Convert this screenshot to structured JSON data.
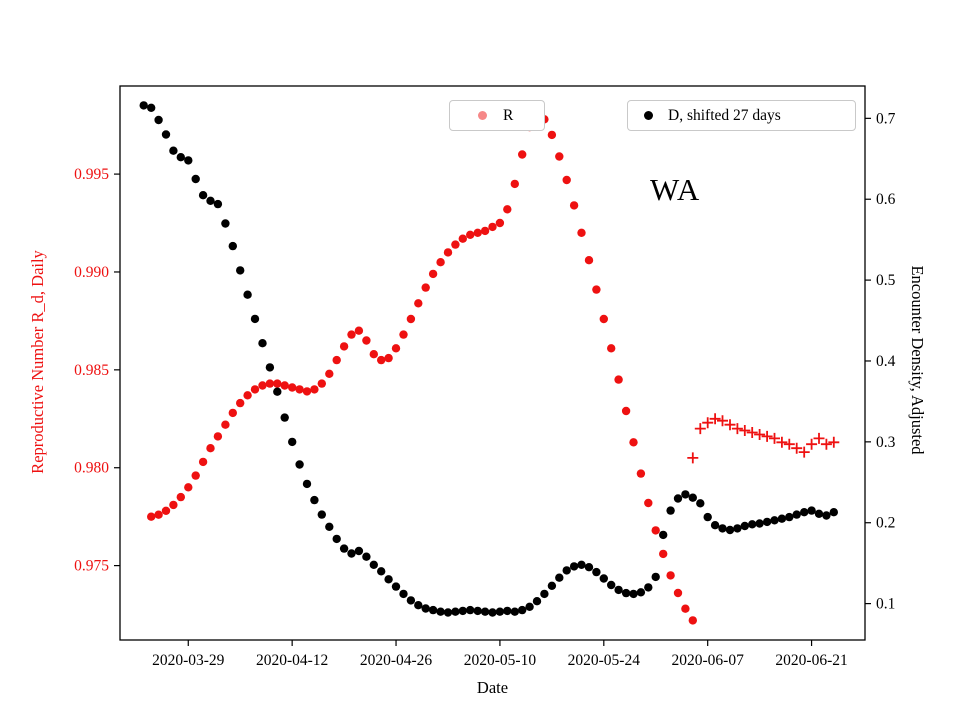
{
  "chart_data": {
    "type": "scatter",
    "title": "",
    "annotation": "WA",
    "xlabel": "Date",
    "x_unit": "days since 2020-03-23",
    "xlim_days": [
      -3.2,
      97.2
    ],
    "x_ticks": {
      "days": [
        6,
        20,
        34,
        48,
        62,
        76,
        90
      ],
      "labels": [
        "2020-03-29",
        "2020-04-12",
        "2020-04-26",
        "2020-05-10",
        "2020-05-24",
        "2020-06-07",
        "2020-06-21"
      ]
    },
    "left_axis": {
      "label": "Reproductive Number R_d, Daily",
      "color": "#ee1111",
      "lim": [
        0.9712,
        0.9995
      ],
      "ticks": [
        0.975,
        0.98,
        0.985,
        0.99,
        0.995
      ],
      "tick_labels": [
        "0.975",
        "0.980",
        "0.985",
        "0.990",
        "0.995"
      ]
    },
    "right_axis": {
      "label": "Encounter Density, Adjusted",
      "color": "#000000",
      "lim": [
        0.055,
        0.74
      ],
      "ticks": [
        0.1,
        0.2,
        0.3,
        0.4,
        0.5,
        0.6,
        0.7
      ],
      "tick_labels": [
        "0.1",
        "0.2",
        "0.3",
        "0.4",
        "0.5",
        "0.6",
        "0.7"
      ]
    },
    "legend": [
      {
        "label": "R",
        "marker": "circle",
        "color": "#ee1111",
        "marker_opacity": 0.5
      },
      {
        "label": "D, shifted 27 days",
        "marker": "circle",
        "color": "#000000",
        "marker_opacity": 1
      }
    ],
    "grid": false,
    "series": [
      {
        "name": "R",
        "axis": "left",
        "marker": "circle",
        "color": "#ee1111",
        "start_day": 1,
        "values": [
          0.9775,
          0.9776,
          0.9778,
          0.9781,
          0.9785,
          0.979,
          0.9796,
          0.9803,
          0.981,
          0.9816,
          0.9822,
          0.9828,
          0.9833,
          0.9837,
          0.984,
          0.9842,
          0.9843,
          0.9843,
          0.9842,
          0.9841,
          0.984,
          0.9839,
          0.984,
          0.9843,
          0.9848,
          0.9855,
          0.9862,
          0.9868,
          0.987,
          0.9865,
          0.9858,
          0.9855,
          0.9856,
          0.9861,
          0.9868,
          0.9876,
          0.9884,
          0.9892,
          0.9899,
          0.9905,
          0.991,
          0.9914,
          0.9917,
          0.9919,
          0.992,
          0.9921,
          0.9923,
          0.9925,
          0.9932,
          0.9945,
          0.996,
          0.9974,
          0.998,
          0.9978,
          0.997,
          0.9959,
          0.9947,
          0.9934,
          0.992,
          0.9906,
          0.9891,
          0.9876,
          0.9861,
          0.9845,
          0.9829,
          0.9813,
          0.9797,
          0.9782,
          0.9768,
          0.9756,
          0.9745,
          0.9736,
          0.9728,
          0.9722
        ]
      },
      {
        "name": "R-recent",
        "axis": "left",
        "marker": "plus",
        "color": "#ee1111",
        "start_day": 74,
        "values": [
          0.9805,
          0.982,
          0.9823,
          0.9825,
          0.9824,
          0.9822,
          0.982,
          0.9819,
          0.9818,
          0.9817,
          0.9816,
          0.9815,
          0.9813,
          0.9812,
          0.981,
          0.9808,
          0.9812,
          0.9815,
          0.9812,
          0.9813
        ]
      },
      {
        "name": "D-shifted-27-days",
        "axis": "right",
        "marker": "circle",
        "color": "#000000",
        "start_day": 0,
        "values": [
          0.716,
          0.713,
          0.698,
          0.68,
          0.66,
          0.652,
          0.648,
          0.625,
          0.605,
          0.598,
          0.594,
          0.57,
          0.542,
          0.512,
          0.482,
          0.452,
          0.422,
          0.392,
          0.362,
          0.33,
          0.3,
          0.272,
          0.248,
          0.228,
          0.21,
          0.195,
          0.18,
          0.168,
          0.162,
          0.165,
          0.158,
          0.148,
          0.14,
          0.13,
          0.121,
          0.112,
          0.104,
          0.098,
          0.094,
          0.092,
          0.09,
          0.089,
          0.09,
          0.091,
          0.092,
          0.091,
          0.09,
          0.089,
          0.09,
          0.091,
          0.09,
          0.092,
          0.096,
          0.103,
          0.112,
          0.122,
          0.132,
          0.141,
          0.146,
          0.148,
          0.145,
          0.139,
          0.131,
          0.123,
          0.117,
          0.113,
          0.112,
          0.114,
          0.12,
          0.133,
          0.185,
          0.215,
          0.23,
          0.235,
          0.231,
          0.224,
          0.207,
          0.197,
          0.193,
          0.191,
          0.193,
          0.196,
          0.198,
          0.199,
          0.201,
          0.203,
          0.205,
          0.207,
          0.21,
          0.213,
          0.215,
          0.211,
          0.209,
          0.213
        ]
      }
    ]
  }
}
